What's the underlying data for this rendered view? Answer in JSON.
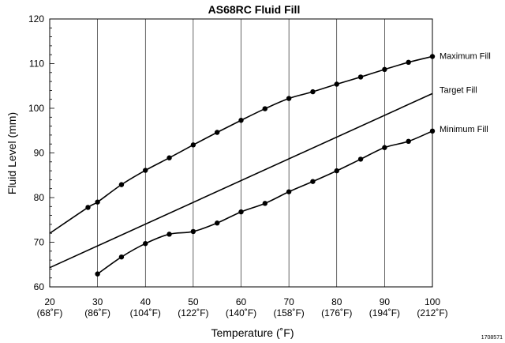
{
  "chart_data": {
    "type": "line",
    "title": "AS68RC Fluid Fill",
    "xlabel": "Temperature (˚F)",
    "ylabel": "Fluid Level (mm)",
    "xlim": [
      20,
      100
    ],
    "ylim": [
      60,
      120
    ],
    "x_ticks": [
      20,
      30,
      40,
      50,
      60,
      70,
      80,
      90,
      100
    ],
    "x_tick_sublabels": [
      "(68˚F)",
      "(86˚F)",
      "(104˚F)",
      "(122˚F)",
      "(140˚F)",
      "(158˚F)",
      "(176˚F)",
      "(194˚F)",
      "(212˚F)"
    ],
    "y_ticks": [
      60,
      70,
      80,
      90,
      100,
      110,
      120
    ],
    "grid": "vertical",
    "legend": "inline labels at right end of each line",
    "series": [
      {
        "name": "Maximum Fill",
        "markers": true,
        "points": [
          [
            20,
            72.0
          ],
          [
            28,
            77.8
          ],
          [
            30,
            79.0
          ],
          [
            35,
            82.9
          ],
          [
            40,
            86.1
          ],
          [
            45,
            88.9
          ],
          [
            50,
            91.8
          ],
          [
            55,
            94.6
          ],
          [
            60,
            97.3
          ],
          [
            65,
            99.9
          ],
          [
            70,
            102.2
          ],
          [
            75,
            103.7
          ],
          [
            80,
            105.4
          ],
          [
            85,
            107.0
          ],
          [
            90,
            108.7
          ],
          [
            95,
            110.3
          ],
          [
            100,
            111.6
          ]
        ],
        "line_start_marker_free": [
          20
        ]
      },
      {
        "name": "Target Fill",
        "markers": false,
        "points": [
          [
            20,
            64.3
          ],
          [
            100,
            103.3
          ]
        ]
      },
      {
        "name": "Minimum Fill",
        "markers": true,
        "points": [
          [
            30,
            62.9
          ],
          [
            35,
            66.7
          ],
          [
            40,
            69.7
          ],
          [
            45,
            71.8
          ],
          [
            50,
            72.4
          ],
          [
            55,
            74.3
          ],
          [
            60,
            76.8
          ],
          [
            65,
            78.7
          ],
          [
            70,
            81.3
          ],
          [
            75,
            83.6
          ],
          [
            80,
            86.0
          ],
          [
            85,
            88.6
          ],
          [
            90,
            91.2
          ],
          [
            95,
            92.6
          ],
          [
            100,
            94.9
          ]
        ]
      }
    ],
    "doc_id": "1708571"
  }
}
